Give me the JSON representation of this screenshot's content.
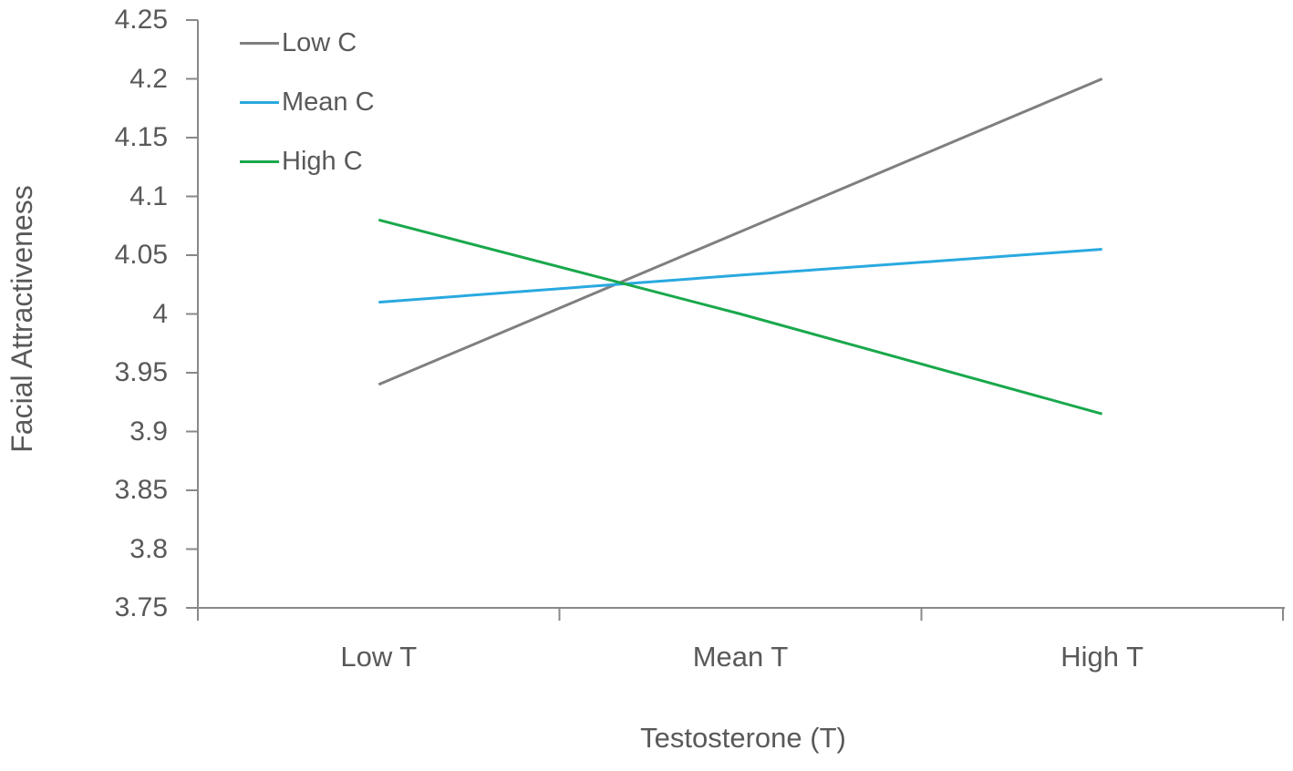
{
  "chart_data": {
    "type": "line",
    "title": "",
    "categories": [
      "Low T",
      "Mean T",
      "High T"
    ],
    "series": [
      {
        "name": "Low C",
        "color": "#7F7F7F",
        "values": [
          3.94,
          4.07,
          4.2
        ]
      },
      {
        "name": "Mean C",
        "color": "#29A9E0",
        "values": [
          4.01,
          4.033,
          4.055
        ]
      },
      {
        "name": "High C",
        "color": "#19A84C",
        "values": [
          4.08,
          4.0,
          3.915
        ]
      }
    ],
    "xlabel": "Testosterone (T)",
    "ylabel": "Facial Attractiveness",
    "ylim": [
      3.75,
      4.25
    ],
    "ytick_step": 0.05,
    "ytick_labels": [
      "3.75",
      "3.8",
      "3.85",
      "3.9",
      "3.95",
      "4",
      "4.05",
      "4.1",
      "4.15",
      "4.2",
      "4.25"
    ],
    "grid": false,
    "legend_position": "top-left-inside"
  },
  "colors": {
    "axis": "#898989",
    "text": "#595959",
    "background": "#FFFFFF"
  }
}
